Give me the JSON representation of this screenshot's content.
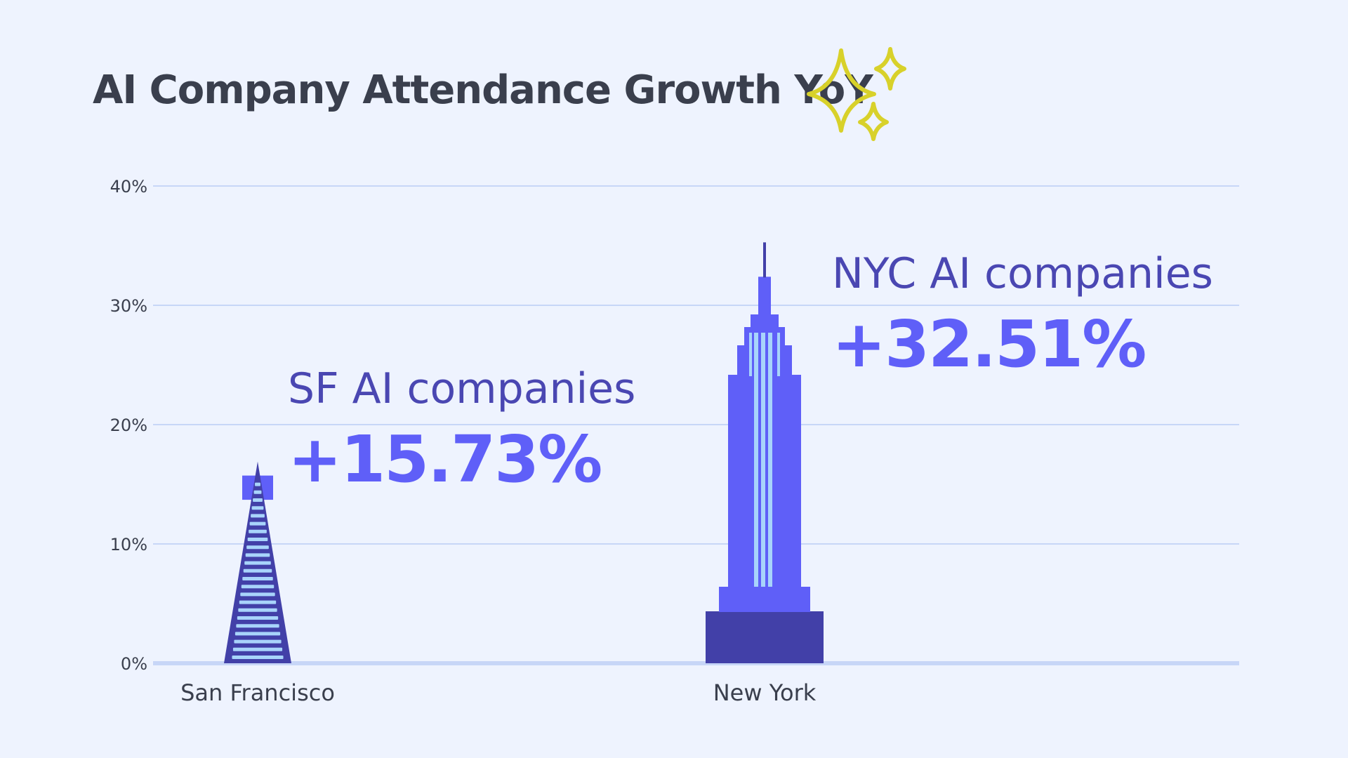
{
  "chart_data": {
    "type": "bar",
    "title": "AI Company Attendance Growth YoY",
    "xlabel": "",
    "ylabel": "",
    "categories": [
      "San Francisco",
      "New York"
    ],
    "values": [
      15.73,
      32.51
    ],
    "ylim": [
      0,
      40
    ],
    "yticks": [
      "0%",
      "10%",
      "20%",
      "30%",
      "40%"
    ],
    "grid": true,
    "annotations": [
      {
        "name": "SF AI companies",
        "value": "+15.73%"
      },
      {
        "name": "NYC AI companies",
        "value": "+32.51%"
      }
    ],
    "colors": {
      "bar": "#5f5ff8",
      "bar_dark": "#4240a8",
      "window": "#a8d4fb",
      "grid": "#c7d6f7",
      "sparkle": "#d8d12a"
    },
    "icons": [
      "transamerica-pyramid-icon",
      "empire-state-building-icon",
      "sparkles-icon"
    ]
  }
}
